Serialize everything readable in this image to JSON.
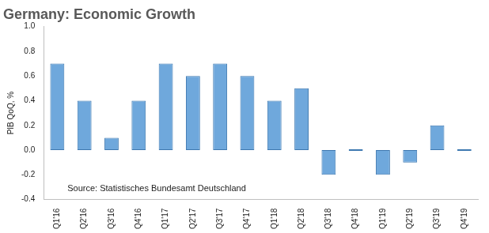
{
  "chart_data": {
    "type": "bar",
    "title": "Germany: Economic Growth",
    "y_label": "PIB QoQ, %",
    "annotations": [
      "Source: Statistisches Bundesamt Deutschland"
    ],
    "categories": [
      "Q1'16",
      "Q2'16",
      "Q3'16",
      "Q4'16",
      "Q1'17",
      "Q2'17",
      "Q3'17",
      "Q4'17",
      "Q1'18",
      "Q2'18",
      "Q3'18",
      "Q4'18",
      "Q1'19",
      "Q2'19",
      "Q3'19",
      "Q4'19"
    ],
    "values": [
      0.7,
      0.4,
      0.1,
      0.4,
      0.7,
      0.6,
      0.7,
      0.6,
      0.4,
      0.5,
      -0.2,
      0.0,
      -0.2,
      -0.1,
      0.2,
      0.0
    ],
    "color": "#6fa8dc",
    "ylim": [
      -0.4,
      1.0
    ],
    "yticks": [
      -0.4,
      -0.2,
      {
        "value": 0,
        "label": "0.0"
      },
      0.2,
      0.4,
      0.6,
      0.8,
      {
        "value": 1,
        "label": "1.0"
      }
    ],
    "grid": false
  }
}
